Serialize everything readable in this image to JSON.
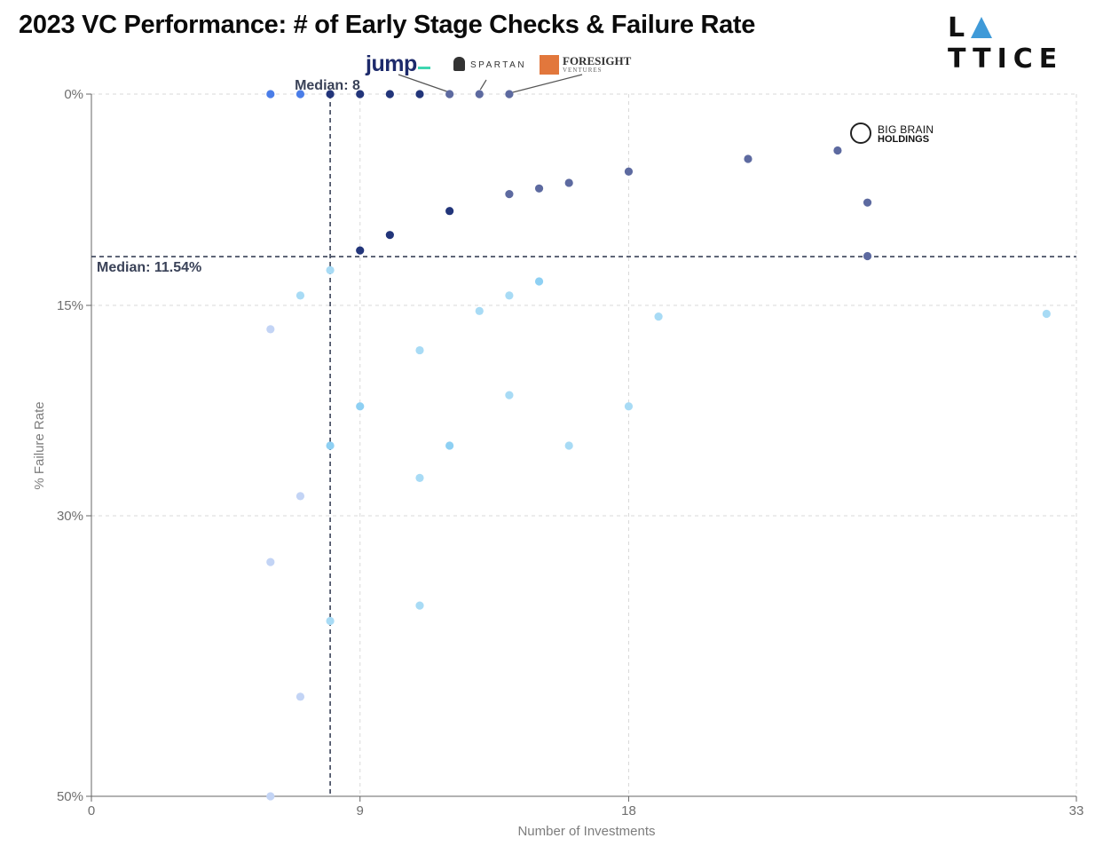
{
  "header": {
    "title": "2023 VC Performance: # of Early Stage Checks & Failure Rate",
    "brand": "LATTICE"
  },
  "logos": {
    "jump": "jump",
    "spartan": "SPARTAN",
    "foresight_name": "FORESIGHT",
    "foresight_sub": "VENTURES",
    "bigbrain_line1": "BIG BRAIN",
    "bigbrain_line2": "HOLDINGS"
  },
  "colors": {
    "background": "#ffffff",
    "grid": "#d9d9d9",
    "axis": "#666666",
    "median_line": "#3a4258",
    "bright_blue": "#4a7de8",
    "navy": "#22357a",
    "slate": "#5d6aa0",
    "sky": "#8ed0f3",
    "pale_sky": "#a8dbf5",
    "pale_blue": "#c3d4f5"
  },
  "chart_data": {
    "type": "scatter",
    "title": "2023 VC Performance: # of Early Stage Checks & Failure Rate",
    "xlabel": "Number of Investments",
    "ylabel": "% Failure Rate",
    "x_ticks": [
      0,
      9,
      18,
      33
    ],
    "x_tick_labels": [
      "0",
      "9",
      "18",
      "33"
    ],
    "y_ticks": [
      0,
      15,
      30,
      50
    ],
    "y_tick_labels": [
      "0%",
      "15%",
      "30%",
      "50%"
    ],
    "xlim": [
      0,
      33
    ],
    "ylim": [
      0,
      50
    ],
    "y_inverted": true,
    "y_scale_note": "non-linear axis: tick labels 0%, 15%, 30%, 50% are evenly spaced except the last segment",
    "grid": true,
    "medians": {
      "x": 8,
      "x_label": "Median: 8",
      "y": 11.54,
      "y_label": "Median: 11.54%"
    },
    "points": [
      {
        "x": 6,
        "y": 0,
        "color": "bright_blue"
      },
      {
        "x": 7,
        "y": 0,
        "color": "bright_blue"
      },
      {
        "x": 8,
        "y": 0,
        "color": "navy"
      },
      {
        "x": 9,
        "y": 0,
        "color": "navy"
      },
      {
        "x": 10,
        "y": 0,
        "color": "navy"
      },
      {
        "x": 11,
        "y": 0,
        "color": "navy"
      },
      {
        "x": 12,
        "y": 0,
        "color": "slate"
      },
      {
        "x": 13,
        "y": 0,
        "color": "slate"
      },
      {
        "x": 14,
        "y": 0,
        "color": "slate"
      },
      {
        "x": 25,
        "y": 4,
        "color": "slate"
      },
      {
        "x": 22,
        "y": 4.6,
        "color": "slate"
      },
      {
        "x": 18,
        "y": 5.5,
        "color": "slate"
      },
      {
        "x": 16,
        "y": 6.3,
        "color": "slate"
      },
      {
        "x": 15,
        "y": 6.7,
        "color": "slate"
      },
      {
        "x": 14,
        "y": 7.1,
        "color": "slate"
      },
      {
        "x": 26,
        "y": 7.7,
        "color": "slate"
      },
      {
        "x": 12,
        "y": 8.3,
        "color": "navy"
      },
      {
        "x": 10,
        "y": 10.0,
        "color": "navy"
      },
      {
        "x": 9,
        "y": 11.1,
        "color": "navy"
      },
      {
        "x": 26,
        "y": 11.5,
        "color": "slate"
      },
      {
        "x": 8,
        "y": 12.5,
        "color": "pale_sky"
      },
      {
        "x": 15,
        "y": 13.3,
        "color": "sky"
      },
      {
        "x": 7,
        "y": 14.3,
        "color": "pale_sky"
      },
      {
        "x": 14,
        "y": 14.3,
        "color": "pale_sky"
      },
      {
        "x": 13,
        "y": 15.4,
        "color": "pale_sky"
      },
      {
        "x": 32,
        "y": 15.6,
        "color": "pale_sky"
      },
      {
        "x": 19,
        "y": 15.8,
        "color": "pale_sky"
      },
      {
        "x": 6,
        "y": 16.7,
        "color": "pale_blue"
      },
      {
        "x": 11,
        "y": 18.2,
        "color": "pale_sky"
      },
      {
        "x": 14,
        "y": 21.4,
        "color": "pale_sky"
      },
      {
        "x": 9,
        "y": 22.2,
        "color": "sky"
      },
      {
        "x": 18,
        "y": 22.2,
        "color": "pale_sky"
      },
      {
        "x": 8,
        "y": 25.0,
        "color": "sky"
      },
      {
        "x": 12,
        "y": 25.0,
        "color": "sky"
      },
      {
        "x": 16,
        "y": 25.0,
        "color": "pale_sky"
      },
      {
        "x": 11,
        "y": 27.3,
        "color": "pale_sky"
      },
      {
        "x": 7,
        "y": 28.6,
        "color": "pale_blue"
      },
      {
        "x": 6,
        "y": 33.3,
        "color": "pale_blue"
      },
      {
        "x": 11,
        "y": 36.4,
        "color": "pale_sky"
      },
      {
        "x": 8,
        "y": 37.5,
        "color": "pale_sky"
      },
      {
        "x": 7,
        "y": 42.9,
        "color": "pale_blue"
      },
      {
        "x": 6,
        "y": 50.0,
        "color": "pale_blue"
      }
    ]
  }
}
